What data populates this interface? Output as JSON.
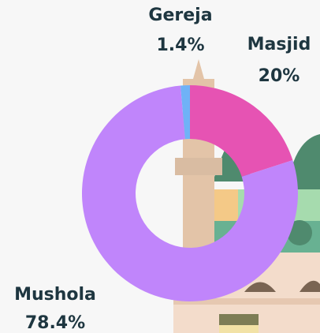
{
  "chart_data": {
    "type": "donut",
    "categories": [
      "Masjid",
      "Mushola",
      "Gereja"
    ],
    "values": [
      20,
      78.4,
      1.4
    ],
    "value_labels": [
      "20%",
      "78.4%",
      "1.4%"
    ],
    "colors": [
      "#e653b3",
      "#c085fb",
      "#6fb2f7"
    ]
  }
}
